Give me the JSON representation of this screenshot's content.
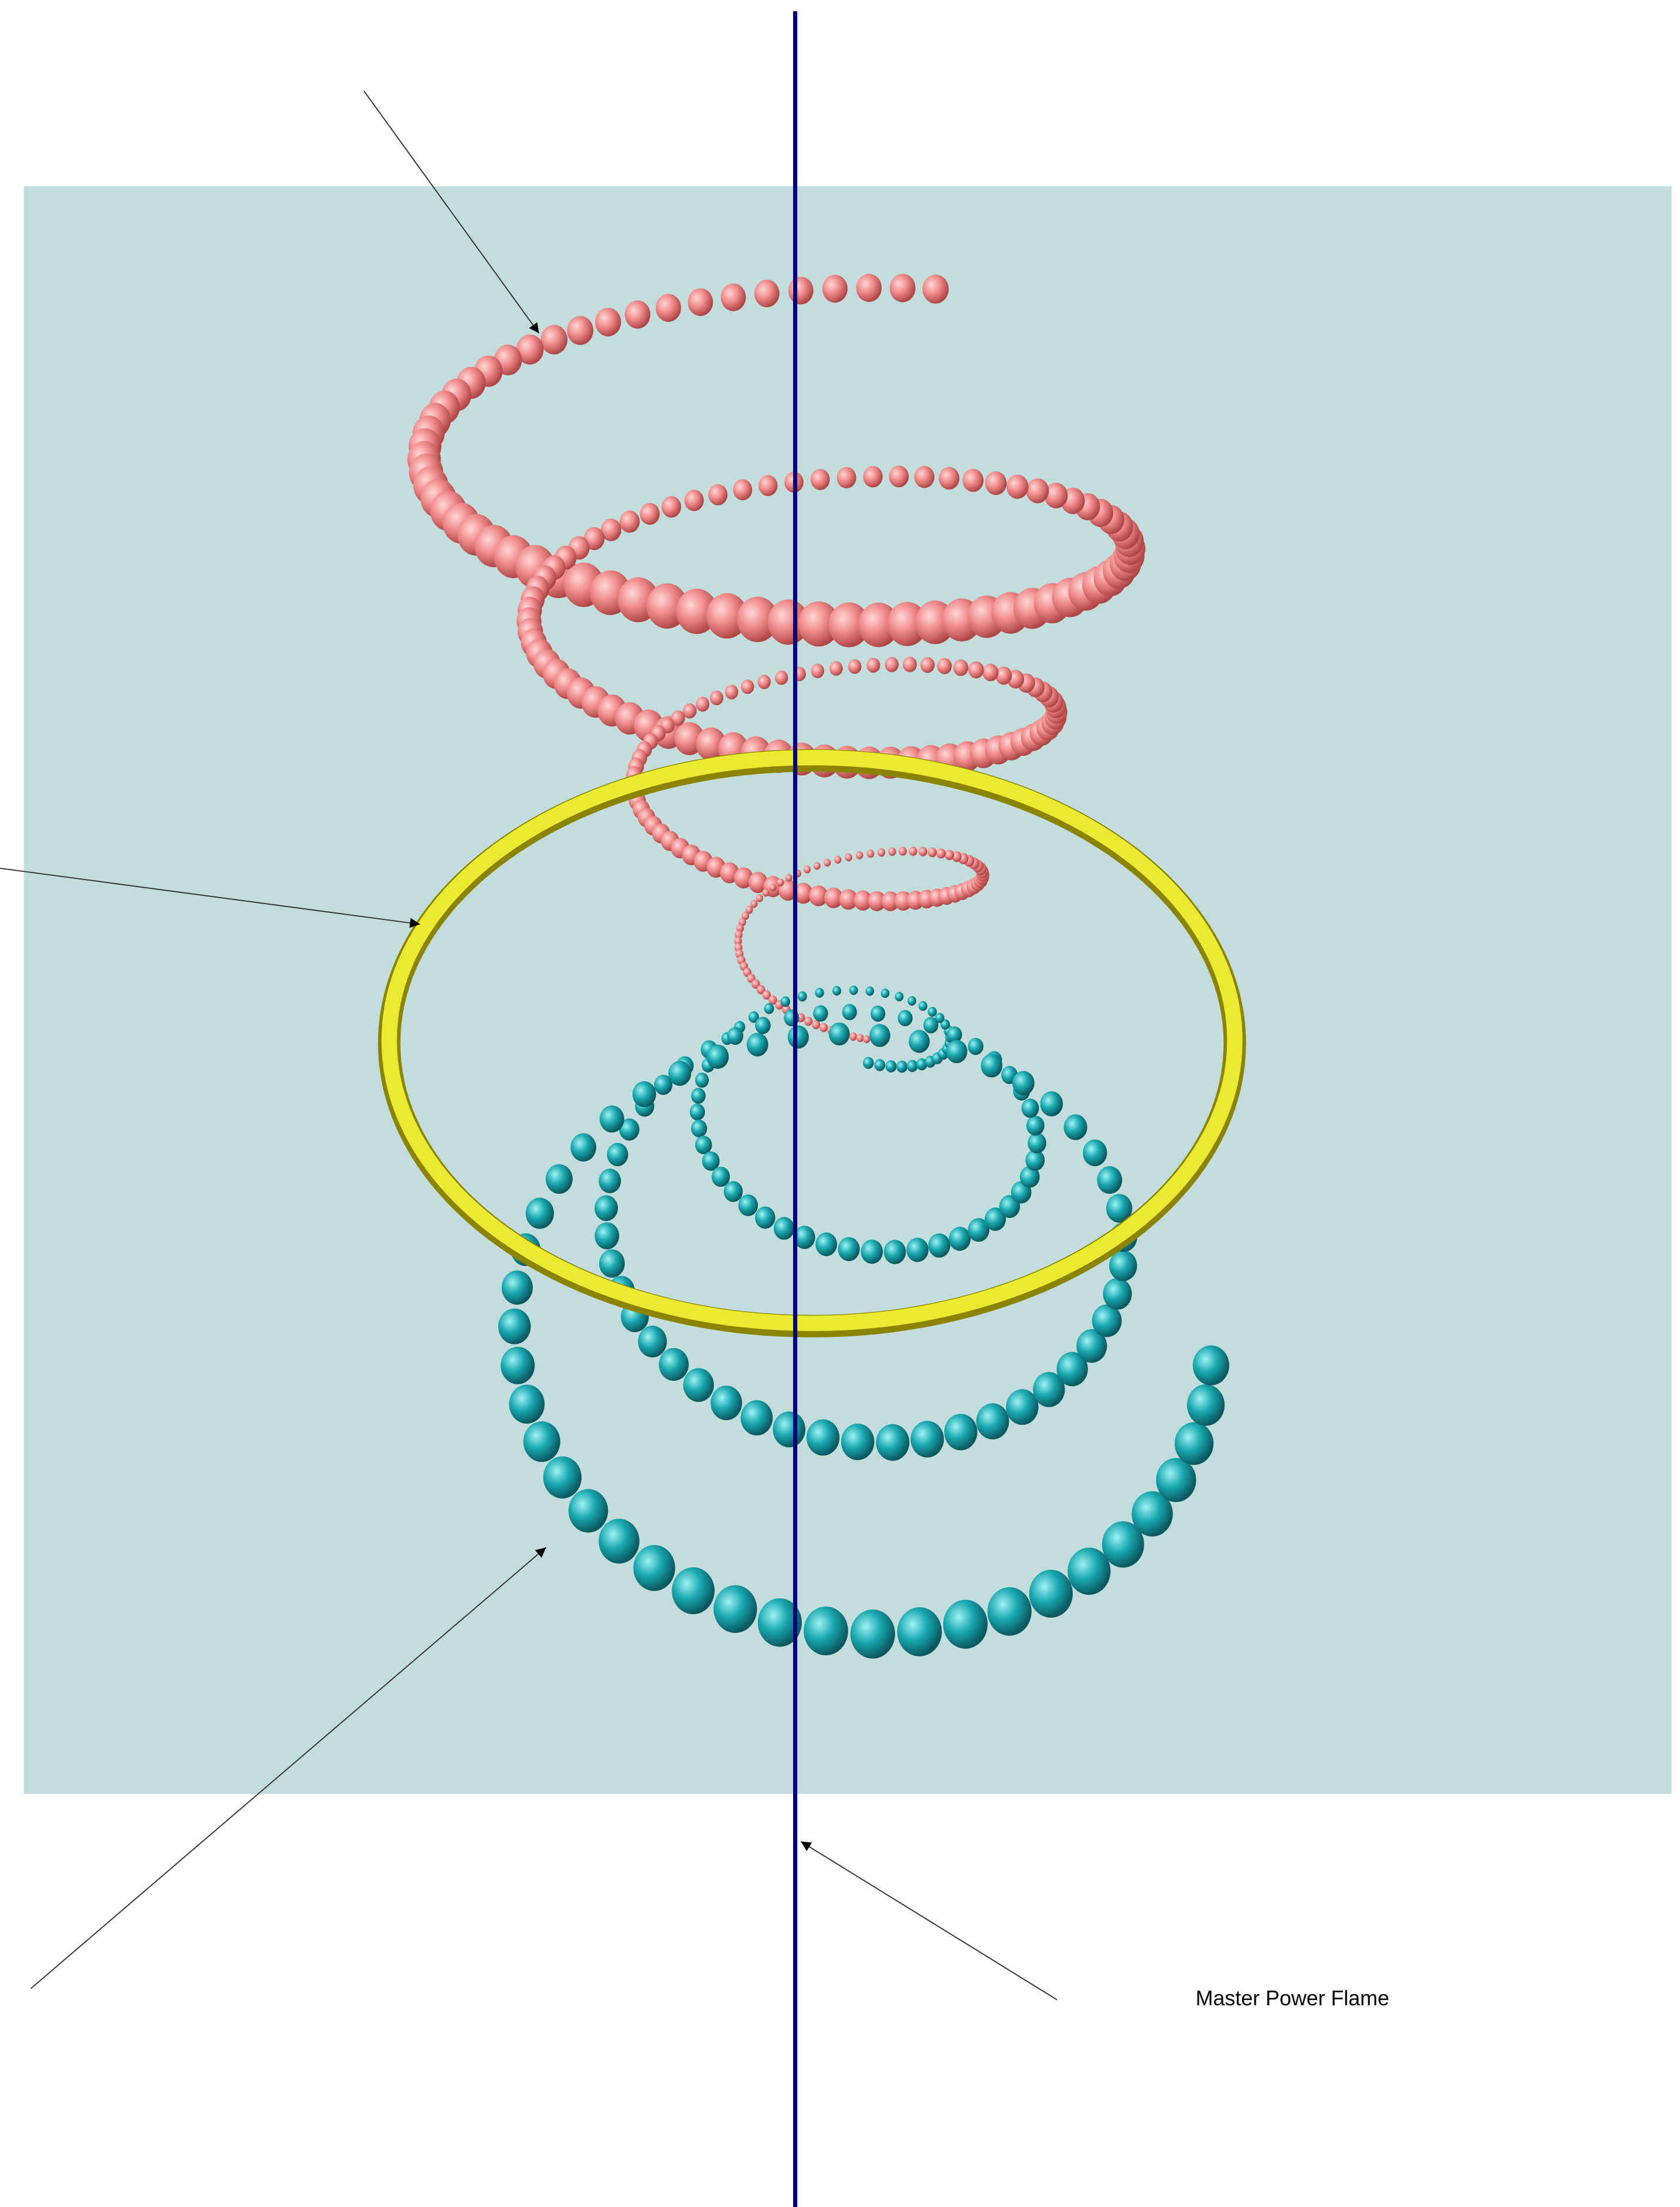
{
  "labels": {
    "master": "Master Power Flame"
  }
}
